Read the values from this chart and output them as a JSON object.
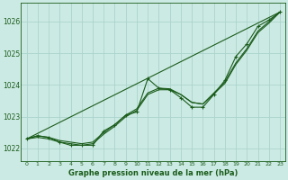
{
  "background_color": "#cceae4",
  "grid_color": "#aad4cc",
  "line_color": "#1a5c1a",
  "xlabel": "Graphe pression niveau de la mer (hPa)",
  "xlim": [
    -0.5,
    23.5
  ],
  "ylim": [
    1021.6,
    1026.6
  ],
  "yticks": [
    1022,
    1023,
    1024,
    1025,
    1026
  ],
  "xticks": [
    0,
    1,
    2,
    3,
    4,
    5,
    6,
    7,
    8,
    9,
    10,
    11,
    12,
    13,
    14,
    15,
    16,
    17,
    18,
    19,
    20,
    21,
    22,
    23
  ],
  "series_main": {
    "x": [
      0,
      1,
      2,
      3,
      4,
      5,
      6,
      7,
      8,
      9,
      10,
      11,
      12,
      13,
      14,
      15,
      16,
      17,
      18,
      19,
      20,
      21,
      22,
      23
    ],
    "y": [
      1022.3,
      1022.4,
      1022.35,
      1022.2,
      1022.1,
      1022.1,
      1022.1,
      1022.55,
      1022.75,
      1023.05,
      1023.15,
      1024.2,
      1023.9,
      1023.85,
      1023.6,
      1023.3,
      1023.3,
      1023.7,
      1024.15,
      1024.9,
      1025.3,
      1025.85,
      1026.05,
      1026.3
    ]
  },
  "series_smooth1": {
    "x": [
      0,
      1,
      2,
      3,
      4,
      5,
      6,
      7,
      8,
      9,
      10,
      11,
      12,
      13,
      14,
      15,
      16,
      17,
      18,
      19,
      20,
      21,
      22,
      23
    ],
    "y": [
      1022.3,
      1022.35,
      1022.3,
      1022.2,
      1022.15,
      1022.1,
      1022.15,
      1022.45,
      1022.7,
      1023.0,
      1023.2,
      1023.7,
      1023.85,
      1023.85,
      1023.7,
      1023.45,
      1023.4,
      1023.75,
      1024.1,
      1024.7,
      1025.15,
      1025.7,
      1026.0,
      1026.3
    ]
  },
  "series_straight": {
    "x": [
      0,
      23
    ],
    "y": [
      1022.3,
      1026.3
    ]
  },
  "series_smooth2": {
    "x": [
      0,
      1,
      2,
      3,
      4,
      5,
      6,
      7,
      8,
      9,
      10,
      11,
      12,
      13,
      14,
      15,
      16,
      17,
      18,
      19,
      20,
      21,
      22,
      23
    ],
    "y": [
      1022.3,
      1022.4,
      1022.35,
      1022.25,
      1022.2,
      1022.15,
      1022.2,
      1022.5,
      1022.75,
      1023.05,
      1023.25,
      1023.75,
      1023.9,
      1023.88,
      1023.7,
      1023.45,
      1023.4,
      1023.72,
      1024.05,
      1024.65,
      1025.1,
      1025.65,
      1025.95,
      1026.3
    ]
  }
}
